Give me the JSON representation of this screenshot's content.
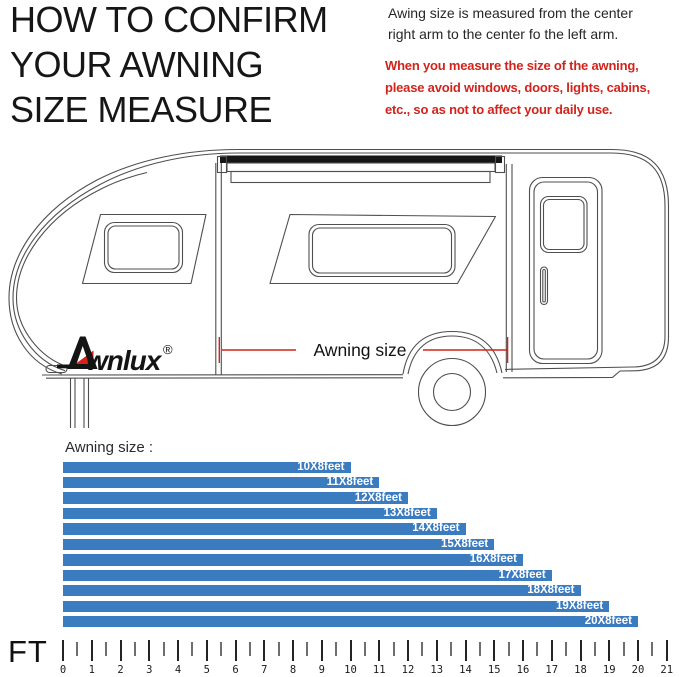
{
  "header": {
    "title_lines": [
      "HOW TO CONFIRM",
      "YOUR AWNING",
      "SIZE MEASURE"
    ]
  },
  "instructions": {
    "note_lines": [
      "Awing size is measured from the center",
      "right arm to the center fo the left arm."
    ],
    "warning_lines": [
      "When you measure the size of the awning,",
      "please avoid windows, doors, lights, cabins,",
      "etc., so as not to affect your daily use."
    ],
    "warning_color": "#d2231c"
  },
  "diagram": {
    "brand_full": "Awnlux",
    "brand_text": "wnlux",
    "registered_mark": "®",
    "measure_label": "Awning size",
    "measure_color": "#d2231c",
    "line_color": "#4f4f4f"
  },
  "chart_data": {
    "type": "bar",
    "orientation": "horizontal",
    "title": "Awning size :",
    "categories": [
      "10X8feet",
      "11X8feet",
      "12X8feet",
      "13X8feet",
      "14X8feet",
      "15X8feet",
      "16X8feet",
      "17X8feet",
      "18X8feet",
      "19X8feet",
      "20X8feet"
    ],
    "values": [
      10,
      11,
      12,
      13,
      14,
      15,
      16,
      17,
      18,
      19,
      20
    ],
    "value_unit": "feet",
    "axis_label": "FT",
    "x_ticks": [
      0,
      1,
      2,
      3,
      4,
      5,
      6,
      7,
      8,
      9,
      10,
      11,
      12,
      13,
      14,
      15,
      16,
      17,
      18,
      19,
      20,
      21
    ],
    "xlim": [
      0,
      21.5
    ],
    "grid": false,
    "legend": false,
    "bar_color": "#3b7cc1",
    "bar_label_color": "#ffffff"
  }
}
